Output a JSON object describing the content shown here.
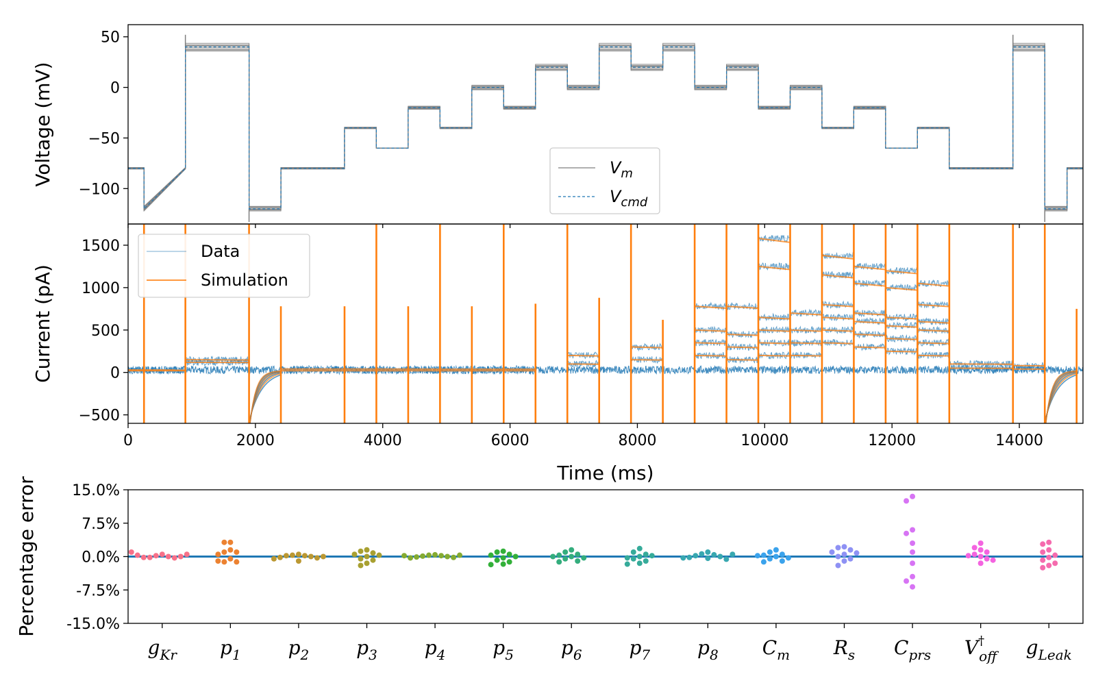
{
  "chart_data": [
    {
      "type": "line",
      "ylabel": "Voltage (mV)",
      "xlim": [
        0,
        15000
      ],
      "ylim": [
        -135,
        62
      ],
      "yticks": [
        50,
        0,
        -50,
        -100
      ],
      "ytick_labels": [
        "50",
        "0",
        "−50",
        "−100"
      ],
      "legend": {
        "placement": "bottom-center",
        "entries": [
          {
            "label": "V",
            "sub": "m",
            "style": "solid",
            "color": "#7f7f7f"
          },
          {
            "label": "V",
            "sub": "cmd",
            "style": "dashed",
            "color": "#1f77b4"
          }
        ]
      },
      "protocol_steps": [
        {
          "t": [
            0,
            250
          ],
          "v": -80
        },
        {
          "t": [
            250,
            900
          ],
          "v_ramp": [
            -120,
            -80
          ]
        },
        {
          "t": [
            900,
            1900
          ],
          "v": 40
        },
        {
          "t": [
            1900,
            2400
          ],
          "v": -120
        },
        {
          "t": [
            2400,
            3400
          ],
          "v": -80
        },
        {
          "t": [
            3400,
            3900
          ],
          "v": -40
        },
        {
          "t": [
            3900,
            4400
          ],
          "v": -60
        },
        {
          "t": [
            4400,
            4900
          ],
          "v": -20
        },
        {
          "t": [
            4900,
            5400
          ],
          "v": -40
        },
        {
          "t": [
            5400,
            5900
          ],
          "v": 0
        },
        {
          "t": [
            5900,
            6400
          ],
          "v": -20
        },
        {
          "t": [
            6400,
            6900
          ],
          "v": 20
        },
        {
          "t": [
            6900,
            7400
          ],
          "v": 0
        },
        {
          "t": [
            7400,
            7900
          ],
          "v": 40
        },
        {
          "t": [
            7900,
            8400
          ],
          "v": 20
        },
        {
          "t": [
            8400,
            8900
          ],
          "v": 40
        },
        {
          "t": [
            8900,
            9400
          ],
          "v": 0
        },
        {
          "t": [
            9400,
            9900
          ],
          "v": 20
        },
        {
          "t": [
            9900,
            10400
          ],
          "v": -20
        },
        {
          "t": [
            10400,
            10900
          ],
          "v": 0
        },
        {
          "t": [
            10900,
            11400
          ],
          "v": -40
        },
        {
          "t": [
            11400,
            11900
          ],
          "v": -20
        },
        {
          "t": [
            11900,
            12400
          ],
          "v": -60
        },
        {
          "t": [
            12400,
            12900
          ],
          "v": -40
        },
        {
          "t": [
            12900,
            13900
          ],
          "v": -80
        },
        {
          "t": [
            13900,
            14400
          ],
          "v": 40
        },
        {
          "t": [
            14400,
            14750
          ],
          "v": -120
        },
        {
          "t": [
            14750,
            15000
          ],
          "v": -80
        }
      ]
    },
    {
      "type": "line",
      "ylabel": "Current (pA)",
      "xlabel": "Time (ms)",
      "xlim": [
        0,
        15000
      ],
      "ylim": [
        -600,
        1750
      ],
      "xticks": [
        0,
        2000,
        4000,
        6000,
        8000,
        10000,
        12000,
        14000
      ],
      "xtick_labels": [
        "0",
        "2000",
        "4000",
        "6000",
        "8000",
        "10000",
        "12000",
        "14000"
      ],
      "yticks": [
        1500,
        1000,
        500,
        0,
        -500
      ],
      "ytick_labels": [
        "1500",
        "1000",
        "500",
        "0",
        "−500"
      ],
      "legend": {
        "placement": "top-left",
        "entries": [
          {
            "label": "Data",
            "color": "#1f77b4"
          },
          {
            "label": "Simulation",
            "color": "#ff7f0e"
          }
        ]
      },
      "spike_times": [
        250,
        900,
        1900,
        2400,
        3400,
        3900,
        4400,
        4900,
        5400,
        5900,
        6400,
        6900,
        7400,
        7900,
        8400,
        8900,
        9400,
        9900,
        10400,
        10900,
        11400,
        11900,
        12400,
        12900,
        13900,
        14400,
        14900
      ],
      "spike_peaks": [
        1750,
        1750,
        1750,
        780,
        780,
        1750,
        780,
        1750,
        780,
        1750,
        810,
        1750,
        880,
        1750,
        620,
        1750,
        1750,
        1750,
        1750,
        1750,
        1750,
        1750,
        1750,
        1750,
        1750,
        1750,
        750
      ],
      "steady_levels": [
        {
          "t": [
            0,
            900
          ],
          "levels": [
            20,
            30
          ]
        },
        {
          "t": [
            900,
            1900
          ],
          "levels": [
            120,
            150
          ]
        },
        {
          "t": [
            2400,
            6400
          ],
          "levels": [
            20,
            40
          ]
        },
        {
          "t": [
            6900,
            7400
          ],
          "levels": [
            100,
            200
          ]
        },
        {
          "t": [
            7900,
            8400
          ],
          "levels": [
            150,
            300
          ]
        },
        {
          "t": [
            8900,
            9400
          ],
          "levels": [
            200,
            350,
            500,
            780
          ]
        },
        {
          "t": [
            9400,
            9900
          ],
          "levels": [
            150,
            300,
            450,
            780
          ]
        },
        {
          "t": [
            9900,
            10400
          ],
          "levels": [
            200,
            350,
            500,
            650,
            1250,
            1580
          ]
        },
        {
          "t": [
            10400,
            10900
          ],
          "levels": [
            200,
            350,
            500,
            700
          ]
        },
        {
          "t": [
            10900,
            11400
          ],
          "levels": [
            350,
            500,
            650,
            800,
            1150,
            1380
          ]
        },
        {
          "t": [
            11400,
            11900
          ],
          "levels": [
            300,
            450,
            600,
            700,
            1050,
            1250
          ]
        },
        {
          "t": [
            11900,
            12400
          ],
          "levels": [
            250,
            400,
            550,
            650,
            1000,
            1200
          ]
        },
        {
          "t": [
            12400,
            12900
          ],
          "levels": [
            200,
            350,
            500,
            600,
            800,
            1050
          ]
        },
        {
          "t": [
            12900,
            13900
          ],
          "levels": [
            50,
            100
          ]
        },
        {
          "t": [
            13900,
            14400
          ],
          "levels": [
            40,
            80
          ]
        }
      ]
    },
    {
      "type": "scatter",
      "ylabel": "Percentage error",
      "ylim": [
        -15,
        15
      ],
      "yticks": [
        15,
        7.5,
        0,
        -7.5,
        -15
      ],
      "ytick_labels": [
        "15.0%",
        "7.5%",
        "0.0%",
        "-7.5%",
        "-15.0%"
      ],
      "categories": [
        {
          "main": "g",
          "sub": "Kr"
        },
        {
          "main": "p",
          "sub": "1"
        },
        {
          "main": "p",
          "sub": "2"
        },
        {
          "main": "p",
          "sub": "3"
        },
        {
          "main": "p",
          "sub": "4"
        },
        {
          "main": "p",
          "sub": "5"
        },
        {
          "main": "p",
          "sub": "6"
        },
        {
          "main": "p",
          "sub": "7"
        },
        {
          "main": "p",
          "sub": "8"
        },
        {
          "main": "C",
          "sub": "m"
        },
        {
          "main": "R",
          "sub": "s"
        },
        {
          "main": "C",
          "sub": "prs"
        },
        {
          "main": "V",
          "sub": "off",
          "sup": "†"
        },
        {
          "main": "g",
          "sub": "Leak"
        }
      ],
      "colors": [
        "#f77189",
        "#ec8231",
        "#bb9832",
        "#a8a031",
        "#85ab31",
        "#33b039",
        "#34ad7d",
        "#36ab9a",
        "#38a8b0",
        "#3ba3ec",
        "#8e91f4",
        "#d774f4",
        "#f464e0",
        "#f56bae"
      ],
      "series": [
        {
          "values": [
            0.5,
            0.2,
            0.0,
            -0.2,
            -0.3,
            -0.2,
            0.0,
            0.3,
            0.5,
            1.0
          ]
        },
        {
          "values": [
            3.2,
            3.2,
            1.5,
            1.0,
            1.0,
            -0.5,
            -1.2,
            -1.2,
            -1.0,
            0.5
          ]
        },
        {
          "values": [
            0.5,
            0.3,
            0.2,
            0.2,
            0.0,
            -0.2,
            -0.3,
            -0.5,
            -1.0,
            0.0
          ]
        },
        {
          "values": [
            1.5,
            1.2,
            0.8,
            0.5,
            0.0,
            -0.5,
            -0.8,
            -1.5,
            -2.0,
            0.3
          ]
        },
        {
          "values": [
            0.4,
            0.3,
            0.2,
            0.1,
            0.0,
            -0.1,
            -0.2,
            -0.3,
            0.3,
            0.2
          ]
        },
        {
          "values": [
            1.2,
            1.0,
            0.5,
            0.3,
            0.0,
            -0.3,
            -0.8,
            -1.2,
            -1.7,
            -1.8
          ]
        },
        {
          "values": [
            1.5,
            1.0,
            0.5,
            0.3,
            0.0,
            -0.3,
            -0.5,
            -1.0,
            -1.2,
            0.0
          ]
        },
        {
          "values": [
            1.8,
            1.0,
            0.5,
            0.0,
            -0.3,
            -0.5,
            -1.0,
            -1.5,
            -1.7,
            0.2
          ]
        },
        {
          "values": [
            1.0,
            0.6,
            0.4,
            0.2,
            0.0,
            -0.2,
            -0.4,
            -0.6,
            -0.3,
            0.5
          ]
        },
        {
          "values": [
            1.5,
            1.0,
            0.5,
            0.3,
            0.0,
            -0.3,
            -0.5,
            -1.0,
            -1.2,
            0.2
          ]
        },
        {
          "values": [
            2.2,
            2.0,
            1.5,
            1.0,
            0.5,
            0.0,
            -0.5,
            -1.0,
            -2.0,
            0.8
          ]
        },
        {
          "values": [
            13.5,
            12.5,
            6.0,
            5.2,
            3.0,
            1.0,
            -1.5,
            -4.5,
            -5.5,
            -6.8
          ]
        },
        {
          "values": [
            3.0,
            2.0,
            1.5,
            1.0,
            0.5,
            0.2,
            0.0,
            -0.5,
            -0.8,
            -1.5
          ]
        },
        {
          "values": [
            3.2,
            2.8,
            1.5,
            1.0,
            0.3,
            -0.2,
            -0.8,
            -1.5,
            -2.0,
            -2.5
          ]
        }
      ]
    }
  ]
}
